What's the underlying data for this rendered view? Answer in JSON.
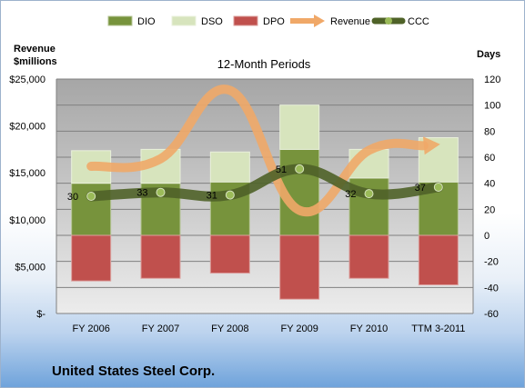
{
  "company": "United States Steel Corp.",
  "chart_data": {
    "type": "bar",
    "title": "12-Month Periods",
    "y_left_label_line1": "Revenue",
    "y_left_label_line2": "$millions",
    "y_right_label": "Days",
    "categories": [
      "FY 2006",
      "FY 2007",
      "FY 2008",
      "FY 2009",
      "FY 2010",
      "TTM 3-2011"
    ],
    "ylim_left": [
      0,
      25000
    ],
    "ylim_right": [
      -60,
      120
    ],
    "left_ticks": [
      "$-",
      "$5,000",
      "$10,000",
      "$15,000",
      "$20,000",
      "$25,000"
    ],
    "left_tick_values": [
      0,
      5000,
      10000,
      15000,
      20000,
      25000
    ],
    "right_ticks": [
      "-60",
      "-40",
      "-20",
      "0",
      "20",
      "40",
      "60",
      "80",
      "100",
      "120"
    ],
    "right_tick_values": [
      -60,
      -40,
      -20,
      0,
      20,
      40,
      60,
      80,
      100,
      120
    ],
    "grid": true,
    "legend_position": "top",
    "series": [
      {
        "name": "DIO",
        "axis": "right",
        "kind": "bar",
        "color": "#77933c",
        "values": [
          40,
          40,
          41,
          66,
          44,
          41
        ]
      },
      {
        "name": "DSO",
        "axis": "right",
        "kind": "bar",
        "color": "#d7e4bd",
        "values": [
          25,
          26,
          23,
          34,
          22,
          34
        ]
      },
      {
        "name": "DPO",
        "axis": "right",
        "kind": "bar",
        "color": "#c0504d",
        "values": [
          35,
          33,
          29,
          49,
          33,
          38
        ]
      },
      {
        "name": "Revenue",
        "axis": "left",
        "kind": "line",
        "color": "#f0a868",
        "values": [
          15700,
          16500,
          23800,
          11000,
          17400,
          17900
        ]
      },
      {
        "name": "CCC",
        "axis": "right",
        "kind": "line",
        "color": "#4f6228",
        "values": [
          30,
          33,
          31,
          51,
          32,
          37
        ],
        "labels": [
          "30",
          "33",
          "31",
          "51",
          "32",
          "37"
        ]
      }
    ]
  }
}
